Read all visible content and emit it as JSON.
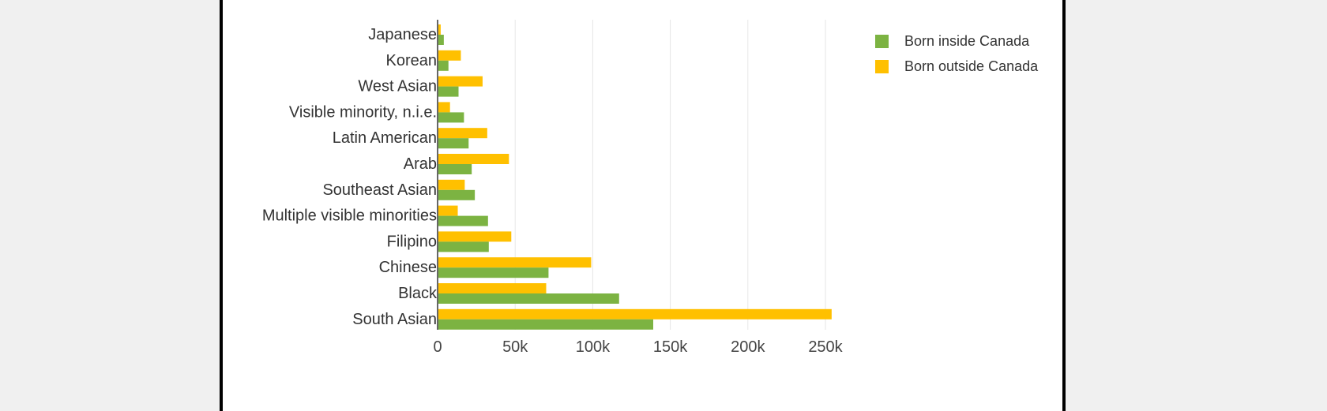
{
  "chart_data": {
    "type": "bar",
    "orientation": "horizontal",
    "categories": [
      "Japanese",
      "Korean",
      "West Asian",
      "Visible minority, n.i.e.",
      "Latin American",
      "Arab",
      "Southeast Asian",
      "Multiple visible minorities",
      "Filipino",
      "Chinese",
      "Black",
      "South Asian"
    ],
    "series": [
      {
        "name": "Born outside Canada",
        "color": "#ffc000",
        "values": [
          2000,
          15000,
          29000,
          8000,
          32000,
          46000,
          17500,
          13000,
          47500,
          99000,
          70000,
          254000
        ]
      },
      {
        "name": "Born inside Canada",
        "color": "#7cb342",
        "values": [
          4000,
          7000,
          13500,
          17000,
          20000,
          22000,
          24000,
          32500,
          33000,
          71500,
          117000,
          139000
        ]
      }
    ],
    "xlim": [
      0,
      250000
    ],
    "xticks": [
      0,
      50000,
      100000,
      150000,
      200000,
      250000
    ],
    "xtick_labels": [
      "0",
      "50k",
      "100k",
      "150k",
      "200k",
      "250k"
    ],
    "grid": true,
    "legend_position": "top-right",
    "legend": [
      {
        "label": "Born inside Canada",
        "color": "#7cb342"
      },
      {
        "label": "Born outside Canada",
        "color": "#ffc000"
      }
    ]
  }
}
